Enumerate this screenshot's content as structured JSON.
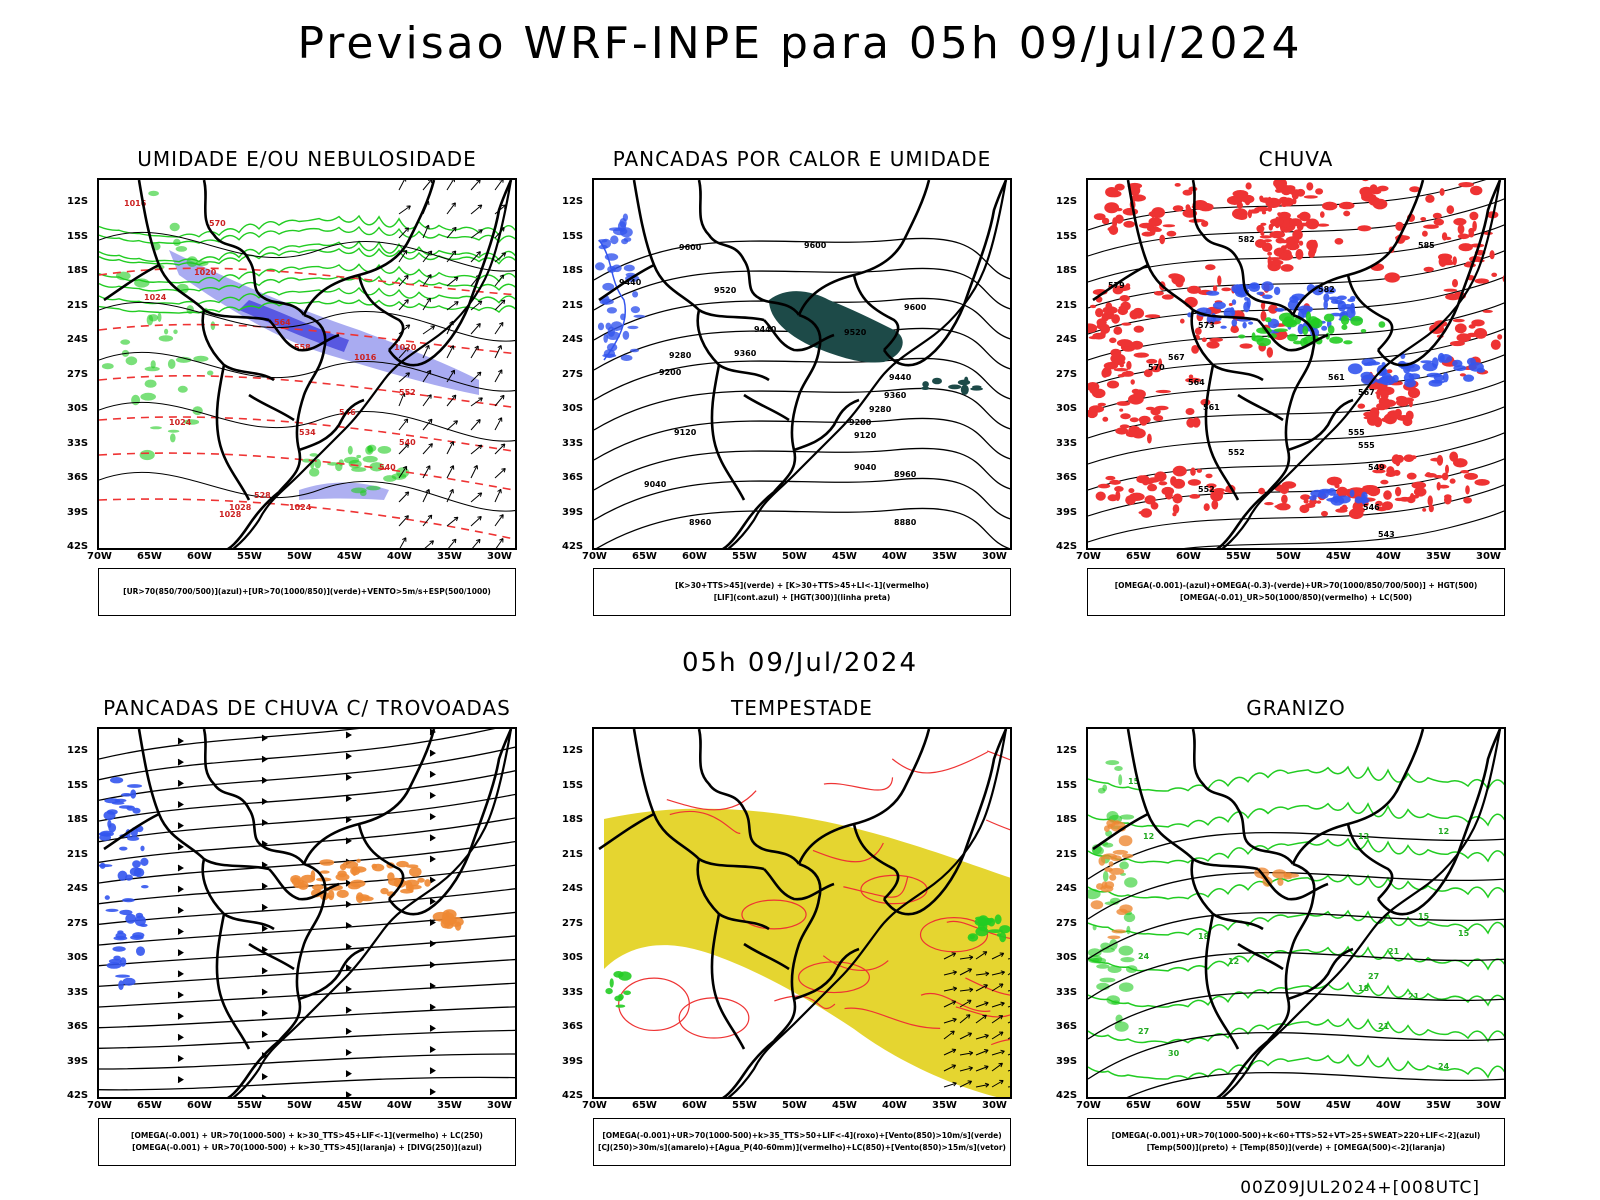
{
  "header": {
    "title": "Previsao WRF-INPE  para 05h 09/Jul/2024"
  },
  "mid_time": "05h 09/Jul/2024",
  "footer": "00Z09JUL2024+[008UTC]",
  "axes": {
    "lat_labels": [
      "12S",
      "15S",
      "18S",
      "21S",
      "24S",
      "27S",
      "30S",
      "33S",
      "36S",
      "39S",
      "42S"
    ],
    "lon_labels": [
      "70W",
      "65W",
      "60W",
      "55W",
      "50W",
      "45W",
      "40W",
      "35W",
      "30W"
    ]
  },
  "colors": {
    "green": "#22cc22",
    "red": "#ee3333",
    "blue": "#3355ee",
    "lavender": "#9a9cee",
    "darkteal": "#1d4a48",
    "orange": "#ee8833",
    "yellow": "#e5d530",
    "black": "#000000"
  },
  "panels": [
    {
      "id": "umidade",
      "title": "UMIDADE E/OU NEBULOSIDADE",
      "legend": [
        "[UR>70(850/700/500)](azul)+[UR>70(1000/850)](verde)+VENTO>5m/s+ESP(500/1000)"
      ],
      "labels": [
        "1016",
        "570",
        "1020",
        "1024",
        "564",
        "558",
        "1016",
        "1020",
        "552",
        "546",
        "540",
        "540",
        "534",
        "528",
        "1024",
        "1028",
        "1028",
        "1024"
      ]
    },
    {
      "id": "pancadas-calor",
      "title": "PANCADAS POR CALOR E UMIDADE",
      "legend": [
        "[K>30+TTS>45](verde) + [K>30+TTS>45+LI<-1](vermelho)",
        "[LIF](cont.azul) + [HGT(300)](linha preta)"
      ],
      "labels": [
        "9600",
        "9600",
        "9440",
        "9520",
        "9520",
        "9440",
        "9360",
        "9280",
        "9200",
        "9600",
        "9440",
        "9360",
        "9280",
        "9200",
        "9120",
        "9120",
        "9040",
        "9040",
        "8960",
        "8960",
        "8880"
      ]
    },
    {
      "id": "chuva",
      "title": "CHUVA",
      "legend": [
        "[OMEGA(-0.001)-(azul)+OMEGA(-0.3)-(verde)+UR>70(1000/850/700/500)] + HGT(500)",
        "[OMEGA(-0.01)_UR>50(1000/850)(vermelho) + LC(500)"
      ],
      "labels": [
        "582",
        "585",
        "579",
        "582",
        "573",
        "567",
        "570",
        "564",
        "561",
        "567",
        "561",
        "555",
        "555",
        "552",
        "549",
        "552",
        "546",
        "543"
      ]
    },
    {
      "id": "pancadas-trovoadas",
      "title": "PANCADAS DE CHUVA C/ TROVOADAS",
      "legend": [
        "[OMEGA(-0.001) + UR>70(1000-500) + k>30_TTS>45+LIF<-1](vermelho) + LC(250)",
        "[OMEGA(-0.001) + UR>70(1000-500) + k>30_TTS>45](laranja) + [DIVG(250)](azul)"
      ],
      "labels": []
    },
    {
      "id": "tempestade",
      "title": "TEMPESTADE",
      "legend": [
        "[OMEGA(-0.001)+UR>70(1000-500)+k>35_TTS>50+LIF<-4](roxo)+[Vento(850)>10m/s](verde)",
        "[CJ(250)>30m/s](amarelo)+[Agua_P(40-60mm)](vermelho)+LC(850)+[Vento(850)>15m/s](vetor)"
      ],
      "labels": []
    },
    {
      "id": "granizo",
      "title": "GRANIZO",
      "legend": [
        "[OMEGA(-0.001)+UR>70(1000-500)+k<60+TTS>52+VT>25+SWEAT>220+LIF<-2](azul)",
        "[Temp(500)](preto) + [Temp(850)](verde) + [OMEGA(500)<-2](laranja)"
      ],
      "labels": [
        "15",
        "12",
        "12",
        "12",
        "15",
        "18",
        "21",
        "24",
        "27",
        "21",
        "18",
        "15",
        "12",
        "21",
        "27",
        "24",
        "30"
      ]
    }
  ]
}
